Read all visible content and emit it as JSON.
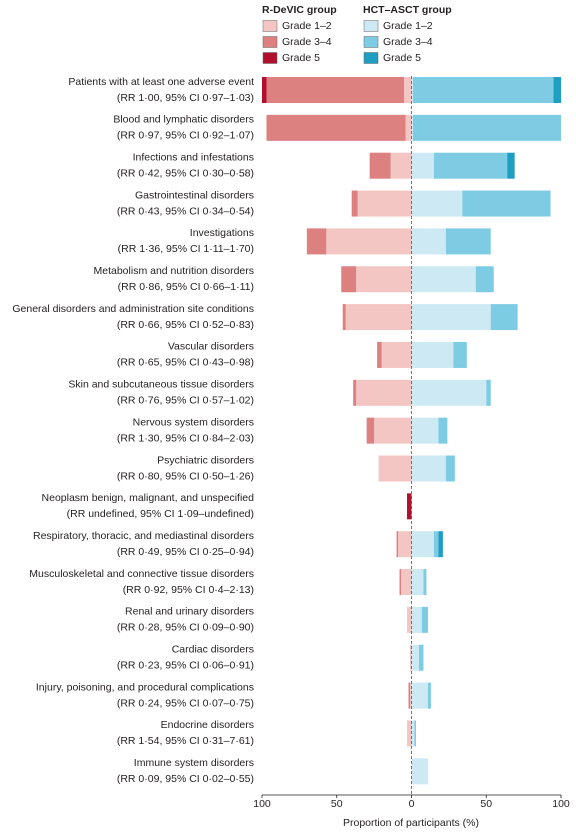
{
  "chart_data": {
    "type": "diverging_bar",
    "groups": [
      "R-DeVIC group",
      "HCT–ASCT group"
    ],
    "categories": [
      "Patients with at least one adverse event",
      "Blood and lymphatic disorders",
      "Infections and infestations",
      "Gastrointestinal disorders",
      "Investigations",
      "Metabolism and nutrition disorders",
      "General disorders and administration site conditions",
      "Vascular disorders",
      "Skin and subcutaneous tissue disorders",
      "Nervous system disorders",
      "Psychiatric disorders",
      "Neoplasm benign, malignant, and unspecified",
      "Respiratory, thoracic, and mediastinal disorders",
      "Musculoskeletal and connective tissue disorders",
      "Renal and urinary disorders",
      "Cardiac disorders",
      "Injury, poisoning, and procedural complications",
      "Endocrine disorders",
      "Immune system disorders"
    ],
    "rr": [
      "(RR 1·00, 95% CI 0·97–1·03)",
      "(RR 0·97, 95% CI 0·92–1·07)",
      "(RR 0·42, 95% CI 0·30–0·58)",
      "(RR 0·43, 95% CI 0·34–0·54)",
      "(RR 1·36, 95% CI 1·11–1·70)",
      "(RR 0·86, 95% CI 0·66–1·11)",
      "(RR 0·66, 95% CI 0·52–0·83)",
      "(RR 0·65, 95% CI 0·43–0·98)",
      "(RR 0·76, 95% CI 0·57–1·02)",
      "(RR 1·30, 95% CI 0·84–2·03)",
      "(RR 0·80, 95% CI 0·50–1·26)",
      "(RR undefined, 95% CI 1·09–undefined)",
      "(RR 0·49, 95% CI 0·25–0·94)",
      "(RR 0·92, 95% CI 0·4–2·13)",
      "(RR 0·28, 95% CI 0·09–0·90)",
      "(RR 0·23, 95% CI 0·06–0·91)",
      "(RR 0·24, 95% CI 0·07–0·75)",
      "(RR 1·54, 95% CI 0·31–7·61)",
      "(RR 0·09, 95% CI 0·02–0·55)"
    ],
    "series": [
      {
        "name": "Grade 1–2",
        "side": "left",
        "color": "#f4c6c3",
        "values": [
          5,
          4,
          14,
          36,
          57,
          37,
          44,
          20,
          37,
          25,
          22,
          0,
          9,
          7,
          3,
          1,
          1,
          3,
          0
        ]
      },
      {
        "name": "Grade 3–4",
        "side": "left",
        "color": "#dc8080",
        "values": [
          92,
          93,
          14,
          4,
          13,
          10,
          2,
          3,
          2,
          5,
          0,
          0,
          1,
          1,
          0,
          0,
          1,
          0,
          0
        ]
      },
      {
        "name": "Grade 5",
        "side": "left",
        "color": "#b0102e",
        "values": [
          3,
          0,
          0,
          0,
          0,
          0,
          0,
          0,
          0,
          0,
          0,
          3,
          0,
          0,
          0,
          0,
          0,
          0,
          0
        ]
      },
      {
        "name": "Grade 1–2",
        "side": "right",
        "color": "#cde9f3",
        "values": [
          1,
          1,
          15,
          34,
          23,
          43,
          53,
          28,
          50,
          18,
          23,
          0,
          15,
          8,
          7,
          5,
          11,
          2,
          11
        ]
      },
      {
        "name": "Grade 3–4",
        "side": "right",
        "color": "#7ecce3",
        "values": [
          94,
          99,
          49,
          59,
          30,
          12,
          18,
          9,
          3,
          6,
          6,
          0,
          3,
          2,
          4,
          3,
          2,
          1,
          0
        ]
      },
      {
        "name": "Grade 5",
        "side": "right",
        "color": "#1f9ec4",
        "values": [
          5,
          0,
          5,
          0,
          0,
          0,
          0,
          0,
          0,
          0,
          0,
          0,
          3,
          0,
          0,
          0,
          0,
          0,
          0
        ]
      }
    ],
    "xlim": [
      -100,
      100
    ],
    "xticks": [
      {
        "value": -100,
        "label": "100"
      },
      {
        "value": -50,
        "label": "50"
      },
      0,
      {
        "value": 50,
        "label": "50"
      },
      {
        "value": 100,
        "label": "100"
      }
    ],
    "xlabel": "Proportion of participants (%)"
  }
}
